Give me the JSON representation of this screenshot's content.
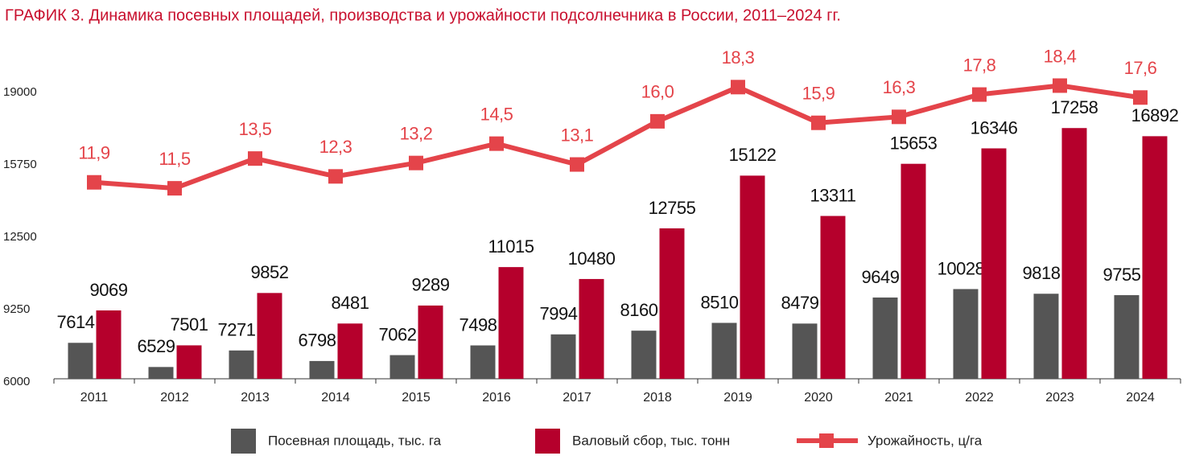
{
  "chart_data": {
    "type": "bar",
    "title": "ГРАФИК 3. Динамика посевных площадей, производства и урожайности подсолнечника в России, 2011–2024 гг.",
    "categories": [
      "2011",
      "2012",
      "2013",
      "2014",
      "2015",
      "2016",
      "2017",
      "2018",
      "2019",
      "2020",
      "2021",
      "2022",
      "2023",
      "2024"
    ],
    "series": [
      {
        "name": "Посевная площадь, тыс. га",
        "type": "bar",
        "color": "#555555",
        "values": [
          7614,
          6529,
          7271,
          6798,
          7062,
          7498,
          7994,
          8160,
          8510,
          8479,
          9649,
          10028,
          9818,
          9755
        ]
      },
      {
        "name": "Валовый сбор, тыс. тонн",
        "type": "bar",
        "color": "#b5002c",
        "values": [
          9069,
          7501,
          9852,
          8481,
          9289,
          11015,
          10480,
          12755,
          15122,
          13311,
          15653,
          16346,
          17258,
          16892
        ]
      },
      {
        "name": "Урожайность, ц/га",
        "type": "line",
        "axis": "y2",
        "color": "#e4444a",
        "values": [
          11.9,
          11.5,
          13.5,
          12.3,
          13.2,
          14.5,
          13.1,
          16.0,
          18.3,
          15.9,
          16.3,
          17.8,
          18.4,
          17.6
        ],
        "value_labels": [
          "11,9",
          "11,5",
          "13,5",
          "12,3",
          "13,2",
          "14,5",
          "13,1",
          "16,0",
          "18,3",
          "15,9",
          "16,3",
          "17,8",
          "18,4",
          "17,6"
        ]
      }
    ],
    "ylim": [
      6000,
      20300
    ],
    "yticks": [
      6000,
      9250,
      12500,
      15750,
      19000
    ],
    "y2lim": [
      -1.3,
      20.1
    ],
    "grid": false
  }
}
